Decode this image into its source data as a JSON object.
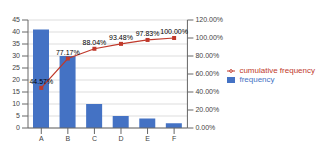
{
  "chart_data": {
    "type": "bar",
    "categories": [
      "A",
      "B",
      "C",
      "D",
      "E",
      "F"
    ],
    "series": [
      {
        "name": "frequency",
        "type": "bar",
        "color": "#4472c4",
        "values": [
          41,
          30,
          10,
          5,
          4,
          2
        ]
      },
      {
        "name": "cumulative frequency",
        "type": "line",
        "axis": "y2",
        "color": "#c0392b",
        "marker": "square",
        "data_labels": true,
        "values": [
          44.57,
          77.17,
          88.04,
          93.48,
          97.83,
          100.0
        ],
        "value_labels": [
          "44.57%",
          "77.17%",
          "88.04%",
          "93.48%",
          "97.83%",
          "100.00%"
        ]
      }
    ],
    "ylim": [
      0,
      45
    ],
    "yticks": [
      0,
      5,
      10,
      15,
      20,
      25,
      30,
      35,
      40,
      45
    ],
    "y2lim": [
      0,
      120
    ],
    "y2ticks": [
      {
        "value": 0,
        "label": "0.00%"
      },
      {
        "value": 20,
        "label": "20.00%"
      },
      {
        "value": 40,
        "label": "40.00%"
      },
      {
        "value": 60,
        "label": "60.00%"
      },
      {
        "value": 80,
        "label": "80.00%"
      },
      {
        "value": 100,
        "label": "100.00%"
      },
      {
        "value": 120,
        "label": "120.00%"
      }
    ],
    "grid": true,
    "legend": "right"
  }
}
